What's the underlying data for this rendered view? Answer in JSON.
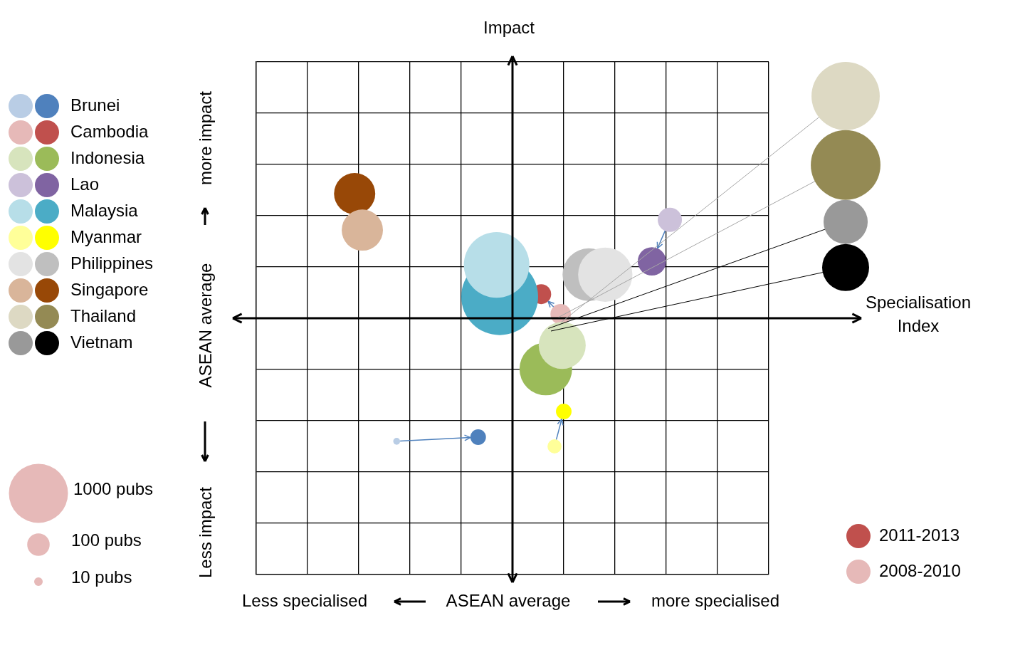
{
  "chart_data": {
    "type": "bubble",
    "y_label": "Impact",
    "x_label": "Specialisation Index",
    "x_annotations": [
      "Less specialised",
      "ASEAN average",
      "more specialised"
    ],
    "y_annotations": [
      "Less impact",
      "ASEAN average",
      "more impact"
    ],
    "xlim": [
      -5,
      5
    ],
    "ylim": [
      -5,
      5
    ],
    "xticks": [
      -5,
      -4,
      -3,
      -2,
      -1,
      0,
      1,
      2,
      3,
      4,
      5
    ],
    "yticks": [
      -5,
      -4,
      -3,
      -2,
      -1,
      0,
      1,
      2,
      3,
      4,
      5
    ],
    "grid": true,
    "tick_labels": false,
    "period_legend": {
      "labels": [
        "2011-2013",
        "2008-2010"
      ],
      "colors": [
        "#C0504D",
        "#E6B9B8"
      ]
    },
    "size_legend": {
      "values": [
        1000,
        100,
        10
      ],
      "labels": [
        "1000 pubs",
        "100 pubs",
        "10 pubs"
      ],
      "color": "#E6B9B8"
    },
    "series": [
      {
        "name": "Brunei",
        "colors": [
          "#B9CDE5",
          "#4F81BD"
        ],
        "marker": "circle",
        "x": [
          -2.26,
          -0.67
        ],
        "y": [
          -2.4,
          -2.32
        ],
        "pubs": [
          6,
          42
        ]
      },
      {
        "name": "Cambodia",
        "colors": [
          "#E6B9B8",
          "#C0504D"
        ],
        "marker": "circle",
        "x": [
          0.94,
          0.56
        ],
        "y": [
          0.08,
          0.47
        ],
        "pubs": [
          80,
          75
        ]
      },
      {
        "name": "Indonesia",
        "colors": [
          "#D7E4BD",
          "#9BBB59"
        ],
        "marker": "circle",
        "x": [
          0.97,
          0.65
        ],
        "y": [
          -0.53,
          -0.99
        ],
        "pubs": [
          580,
          760
        ]
      },
      {
        "name": "Lao",
        "colors": [
          "#CCC1DA",
          "#8064A2"
        ],
        "marker": "circle",
        "x": [
          3.07,
          2.72
        ],
        "y": [
          1.92,
          1.11
        ],
        "pubs": [
          120,
          175
        ]
      },
      {
        "name": "Malaysia",
        "colors": [
          "#B7DEE8",
          "#4BACC6"
        ],
        "marker": "circle",
        "x": [
          -0.31,
          -0.25
        ],
        "y": [
          1.04,
          0.42
        ],
        "pubs": [
          1280,
          1870
        ]
      },
      {
        "name": "Myanmar",
        "colors": [
          "#FFFF99",
          "#FFFF00"
        ],
        "marker": "circle",
        "x": [
          0.82,
          1.0
        ],
        "y": [
          -2.5,
          -1.82
        ],
        "pubs": [
          33,
          42
        ]
      },
      {
        "name": "Philippines",
        "colors": [
          "#E3E3E3",
          "#BFBFBF"
        ],
        "marker": "circle",
        "x": [
          1.81,
          1.49
        ],
        "y": [
          0.85,
          0.85
        ],
        "pubs": [
          820,
          760
        ]
      },
      {
        "name": "Singapore",
        "colors": [
          "#D9B59A",
          "#984807"
        ],
        "marker": "circle",
        "x": [
          -2.93,
          -3.08
        ],
        "y": [
          1.72,
          2.43
        ],
        "pubs": [
          425,
          425
        ]
      },
      {
        "name": "Thailand",
        "colors": [
          "#DDD9C3",
          "#948A54"
        ],
        "marker": "callout",
        "x": [
          0.95,
          0.9
        ],
        "y": [
          -0.08,
          0.02
        ],
        "pubs": [
          1410,
          1480
        ]
      },
      {
        "name": "Vietnam",
        "colors": [
          "#999999",
          "#000000"
        ],
        "marker": "callout",
        "x": [
          0.7,
          0.75
        ],
        "y": [
          -0.2,
          -0.25
        ],
        "pubs": [
          500,
          580
        ]
      }
    ]
  }
}
